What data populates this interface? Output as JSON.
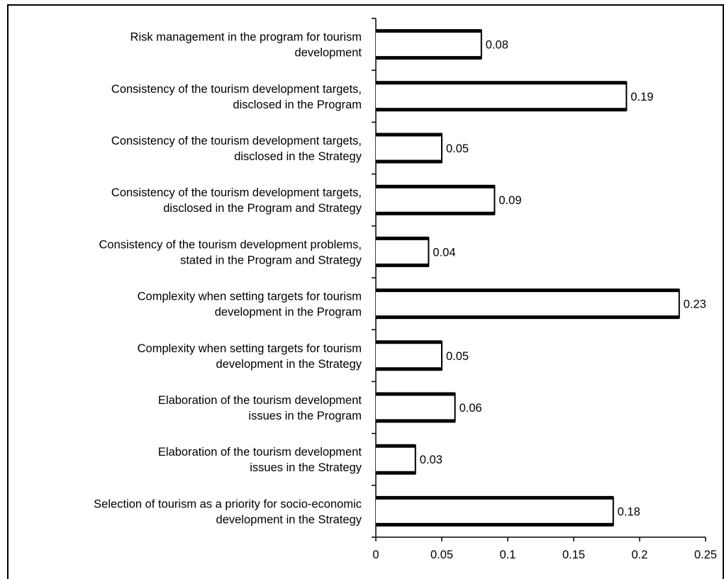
{
  "chart_data": {
    "type": "bar",
    "orientation": "horizontal",
    "categories": [
      "Risk management in the program for tourism development",
      "Consistency of the tourism development targets, disclosed in the Program",
      "Consistency of the tourism development targets, disclosed in the Strategy",
      "Consistency of the tourism development targets, disclosed in the Program and Strategy",
      "Consistency of the tourism development problems, stated in the Program and Strategy",
      "Complexity when setting targets for tourism development in the Program",
      "Complexity when setting targets for tourism development in the Strategy",
      "Elaboration of the tourism development issues in the Program",
      "Elaboration of the tourism development issues in the Strategy",
      "Selection of tourism as a priority for socio-economic development in the Strategy"
    ],
    "category_lines": [
      [
        "Risk management in the program for tourism",
        "development"
      ],
      [
        "Consistency of the tourism development targets,",
        "disclosed in the Program"
      ],
      [
        "Consistency of the tourism development targets,",
        "disclosed in the Strategy"
      ],
      [
        "Consistency of the tourism development targets,",
        "disclosed in the Program and Strategy"
      ],
      [
        "Consistency of the tourism development problems,",
        "stated in the Program and Strategy"
      ],
      [
        "Complexity when setting targets for tourism",
        "development in the Program"
      ],
      [
        "Complexity when setting targets for tourism",
        "development in the Strategy"
      ],
      [
        "Elaboration of the tourism development",
        "issues in the Program"
      ],
      [
        "Elaboration of the tourism development",
        "issues in the Strategy"
      ],
      [
        "Selection of tourism as a priority for socio-economic",
        "development in the Strategy"
      ]
    ],
    "values": [
      0.08,
      0.19,
      0.05,
      0.09,
      0.04,
      0.23,
      0.05,
      0.06,
      0.03,
      0.18
    ],
    "value_labels": [
      "0.08",
      "0.19",
      "0.05",
      "0.09",
      "0.04",
      "0.23",
      "0.05",
      "0.06",
      "0.03",
      "0.18"
    ],
    "xlim": [
      0,
      0.25
    ],
    "x_ticks": [
      0,
      0.05,
      0.1,
      0.15,
      0.2,
      0.25
    ],
    "x_tick_labels": [
      "0",
      "0.05",
      "0.1",
      "0.15",
      "0.2",
      "0.25"
    ],
    "title": "",
    "xlabel": "",
    "ylabel": "",
    "grid": false,
    "legend": "none",
    "bar_fill": "#ffffff",
    "bar_edge": "#000000"
  }
}
